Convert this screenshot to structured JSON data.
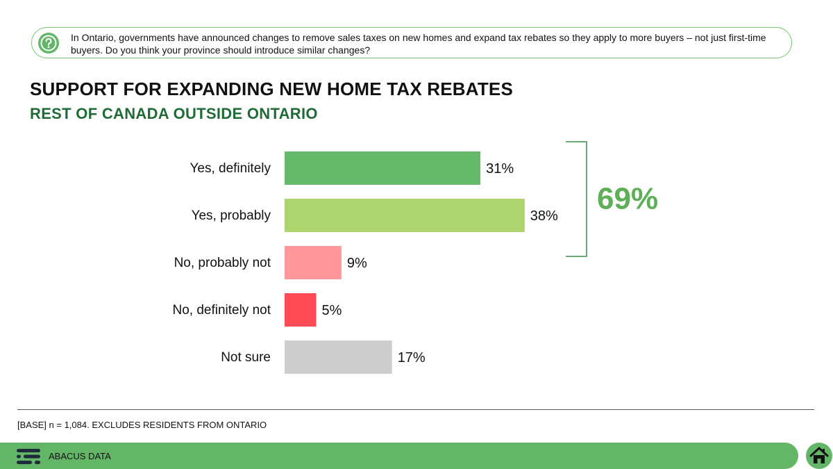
{
  "question": {
    "text": "In Ontario, governments have announced changes to remove sales taxes on new homes and expand tax rebates so they apply to more buyers – not just first-time buyers. Do you think your province should introduce similar changes?",
    "icon": "question-icon"
  },
  "title": "SUPPORT FOR EXPANDING NEW HOME TAX REBATES",
  "subtitle": "REST OF CANADA OUTSIDE ONTARIO",
  "colors": {
    "accent": "#63b567",
    "subtitle": "#1f6b35",
    "total": "#5fae58"
  },
  "chart_data": {
    "type": "bar",
    "orientation": "horizontal",
    "categories": [
      "Yes, definitely",
      "Yes, probably",
      "No, probably not",
      "No, definitely not",
      "Not sure"
    ],
    "values": [
      31,
      38,
      9,
      5,
      17
    ],
    "value_labels": [
      "31%",
      "38%",
      "9%",
      "5%",
      "17%"
    ],
    "colors": [
      "#66b86a",
      "#add46e",
      "#ff979b",
      "#ff4b55",
      "#cccdcc"
    ],
    "unit": "%",
    "grid": false,
    "legend": "none",
    "bracket": {
      "categories": [
        "Yes, definitely",
        "Yes, probably"
      ],
      "label": "69%"
    }
  },
  "footer": {
    "base_note": "[BASE] n = 1,084. EXCLUDES RESIDENTS FROM ONTARIO",
    "brand": "ABACUS DATA",
    "home_icon": "home-icon"
  }
}
